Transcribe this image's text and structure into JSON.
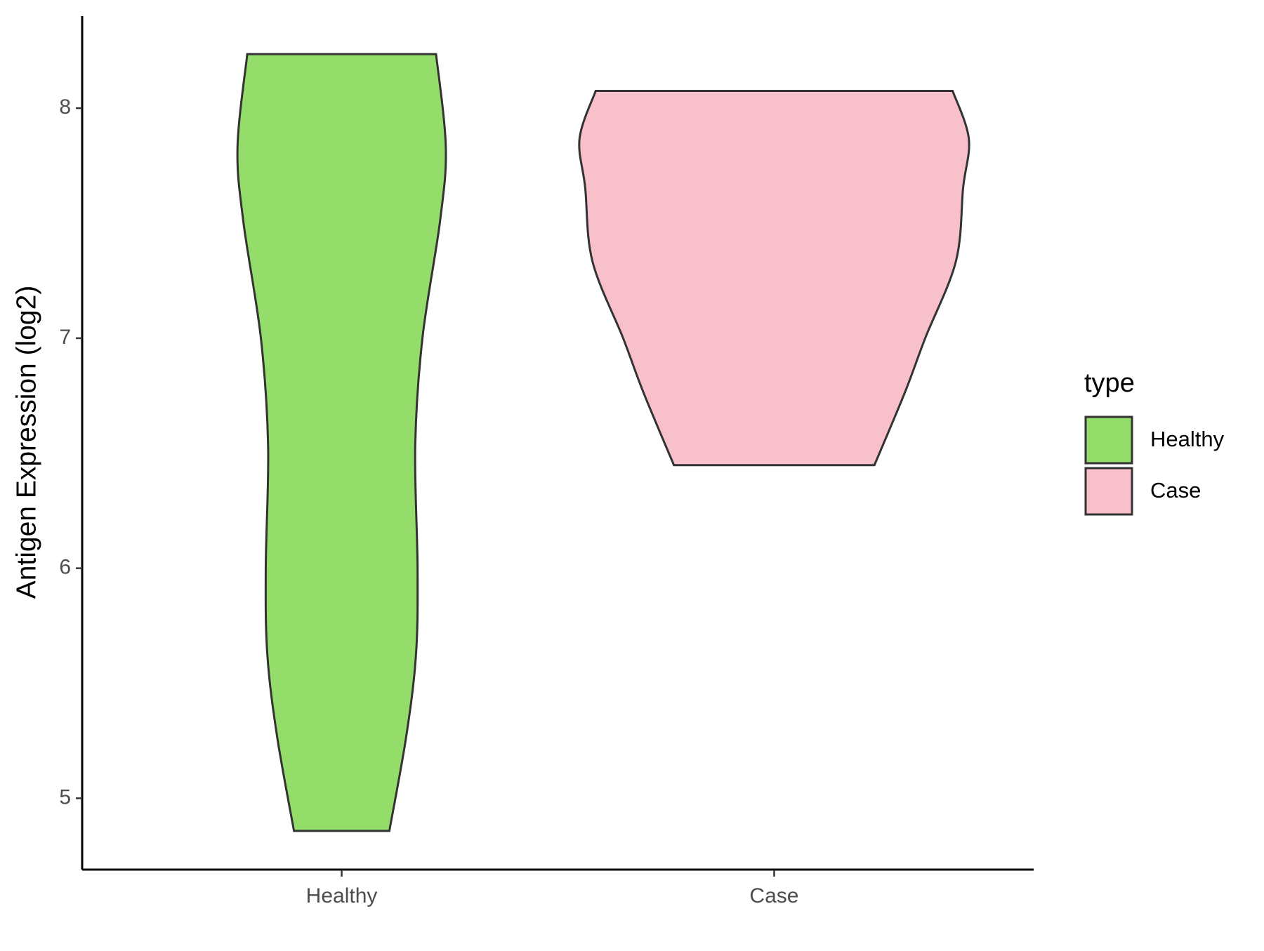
{
  "chart_data": {
    "type": "violin",
    "y_label": "Antigen Expression (log2)",
    "categories": [
      "Healthy",
      "Case"
    ],
    "ylim": [
      4.69,
      8.4
    ],
    "yticks": [
      5,
      6,
      7,
      8
    ],
    "legend_title": "type",
    "legend_position": "right",
    "series": [
      {
        "name": "Healthy",
        "color": "#95dd6b",
        "y": [
          8.235,
          7.833,
          7.512,
          7.0,
          6.534,
          6.0,
          5.626,
          5.27,
          4.858
        ],
        "density": [
          0.485,
          0.535,
          0.506,
          0.415,
          0.378,
          0.39,
          0.382,
          0.332,
          0.245
        ]
      },
      {
        "name": "Case",
        "color": "#f8c0cb",
        "y": [
          8.075,
          7.868,
          7.655,
          7.335,
          7.0,
          6.765,
          6.448
        ],
        "density": [
          0.917,
          1.0,
          0.971,
          0.934,
          0.776,
          0.672,
          0.515
        ]
      }
    ]
  }
}
